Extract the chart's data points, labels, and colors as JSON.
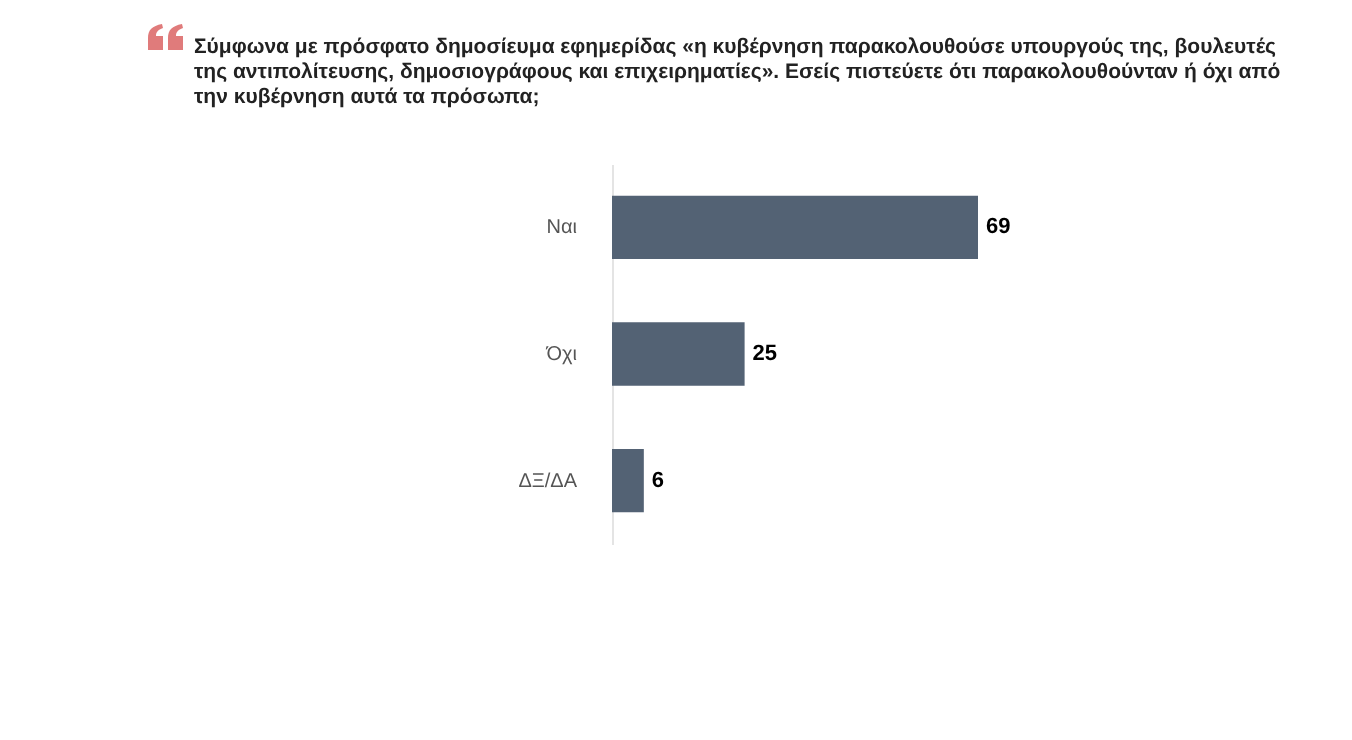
{
  "chart_data": {
    "type": "bar",
    "orientation": "horizontal",
    "title": "Σύμφωνα με πρόσφατο  δημοσίευμα εφημερίδας «η κυβέρνηση παρακολουθούσε υπουργούς της, βουλευτές της αντιπολίτευσης, δημοσιογράφους  και επιχειρηματίες». Εσείς  πιστεύετε ότι παρακολουθούνταν ή όχι από την κυβέρνηση αυτά τα πρόσωπα;",
    "categories": [
      "Ναι",
      "Όχι",
      "ΔΞ/ΔΑ"
    ],
    "values": [
      69,
      25,
      6
    ],
    "color": "#536274",
    "data_labels": true
  }
}
